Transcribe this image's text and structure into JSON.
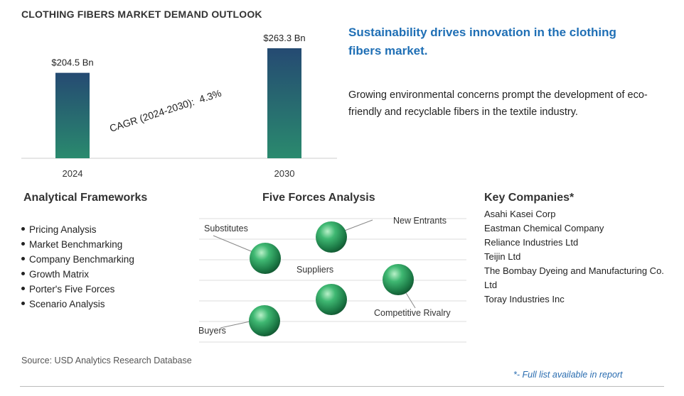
{
  "title": "CLOTHING FIBERS MARKET DEMAND OUTLOOK",
  "chart_data": {
    "type": "bar",
    "categories": [
      "2024",
      "2030"
    ],
    "values": [
      204.5,
      263.3
    ],
    "value_labels": [
      "$204.5  Bn",
      "$263.3  Bn"
    ],
    "unit": "Bn",
    "ylim": [
      0,
      263.3
    ],
    "annotation": {
      "label": "CAGR (2024-2030):",
      "value": "4.3%"
    },
    "colors": {
      "bar_top": "#254a72",
      "bar_bottom": "#2a8a6e",
      "axis": "#cccccc"
    },
    "grid": false
  },
  "headline": "Sustainability drives innovation in the clothing fibers market.",
  "description": "Growing environmental concerns prompt the development of eco-friendly and recyclable fibers in the textile industry.",
  "analytical_frameworks": {
    "title": "Analytical Frameworks",
    "items": [
      "Pricing Analysis",
      "Market Benchmarking",
      "Company Benchmarking",
      "Growth Matrix",
      "Porter's Five Forces",
      "Scenario Analysis"
    ]
  },
  "five_forces": {
    "title": "Five Forces Analysis",
    "labels": {
      "new_entrants": "New Entrants",
      "substitutes": "Substitutes",
      "suppliers": "Suppliers",
      "competitive_rivalry": "Competitive Rivalry",
      "buyers": "Buyers"
    },
    "sphere_color": "#2e9e5e"
  },
  "key_companies": {
    "title": "Key Companies*",
    "items": [
      "Asahi Kasei Corp",
      "Eastman Chemical Company",
      "Reliance Industries Ltd",
      "Teijin Ltd",
      "The Bombay Dyeing and Manufacturing Co. Ltd",
      "Toray Industries Inc"
    ]
  },
  "source": "Source: USD Analytics Research Database",
  "footnote": "*- Full list available in report"
}
